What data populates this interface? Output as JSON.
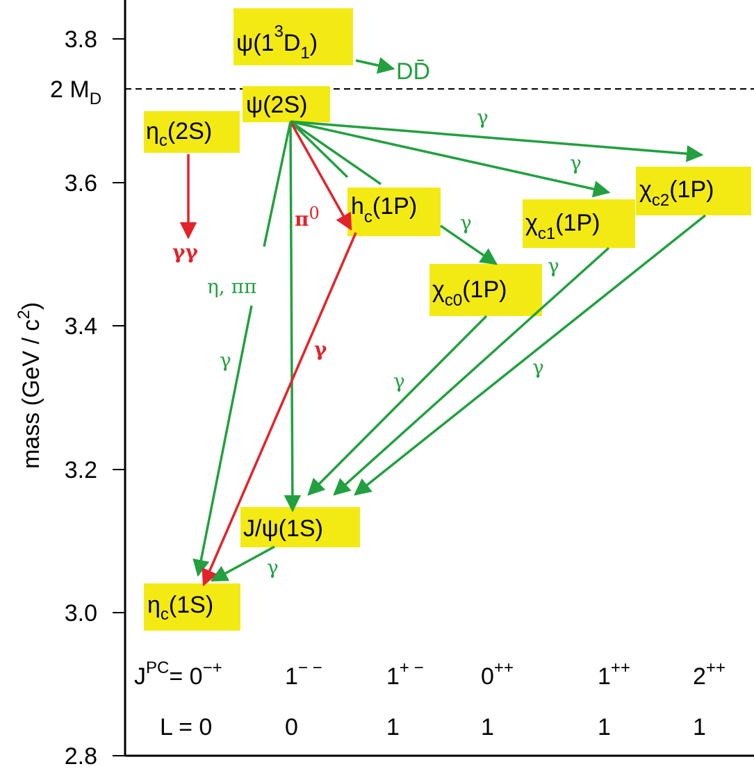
{
  "colors": {
    "transition_green": "#22a040",
    "transition_red": "#e32329",
    "state_highlight": "#f3ea14",
    "frame": "#000000"
  },
  "axis": {
    "title": "mass (GeV / c",
    "title_sup": "2",
    "title_close": ")",
    "range": [
      2.8,
      3.85
    ],
    "ticks": [
      {
        "value": 2.8,
        "label": "2.8"
      },
      {
        "value": 3.0,
        "label": "3.0"
      },
      {
        "value": 3.2,
        "label": "3.2"
      },
      {
        "value": 3.4,
        "label": "3.4"
      },
      {
        "value": 3.6,
        "label": "3.6"
      },
      {
        "value": 3.8,
        "label": "3.8"
      }
    ],
    "threshold": {
      "value": 3.73,
      "label": "2 M",
      "label_sub": "D"
    }
  },
  "states": {
    "psi3770": {
      "main": "ψ(1",
      "sup": "3",
      "main2": "D",
      "sub": "1",
      "close": ")"
    },
    "psi2s": {
      "main": "ψ(2S)"
    },
    "etac2s": {
      "main": "η",
      "sub": "c",
      "close": "(2S)"
    },
    "hc": {
      "main": "h",
      "sub": "c",
      "close": "(1P)"
    },
    "chic0": {
      "main": "χ",
      "sub": "c0",
      "close": "(1P)"
    },
    "chic1": {
      "main": "χ",
      "sub": "c1",
      "close": "(1P)"
    },
    "chic2": {
      "main": "χ",
      "sub": "c2",
      "close": "(1P)"
    },
    "jpsi": {
      "main": "J/ψ(1S)"
    },
    "etac1s": {
      "main": "η",
      "sub": "c",
      "close": "(1S)"
    }
  },
  "transition_labels": {
    "dd": "DD̄",
    "gamma": "γ",
    "gammagamma": "γγ",
    "pi0": "π",
    "pi0_sup": "0",
    "eta_pipi": "η, ππ"
  },
  "quantum_numbers": {
    "jpc_prefix": "J",
    "jpc_prefix_sup": "PC",
    "jpc_eq": "= 0",
    "jpc_first_sup": "−+",
    "jpc": [
      {
        "base": "1",
        "sup": "− −"
      },
      {
        "base": "1",
        "sup": "+ −"
      },
      {
        "base": "0",
        "sup": "++"
      },
      {
        "base": "1",
        "sup": "++"
      },
      {
        "base": "2",
        "sup": "++"
      }
    ],
    "l_prefix": "L = 0",
    "l": [
      "0",
      "1",
      "1",
      "1",
      "1"
    ]
  }
}
